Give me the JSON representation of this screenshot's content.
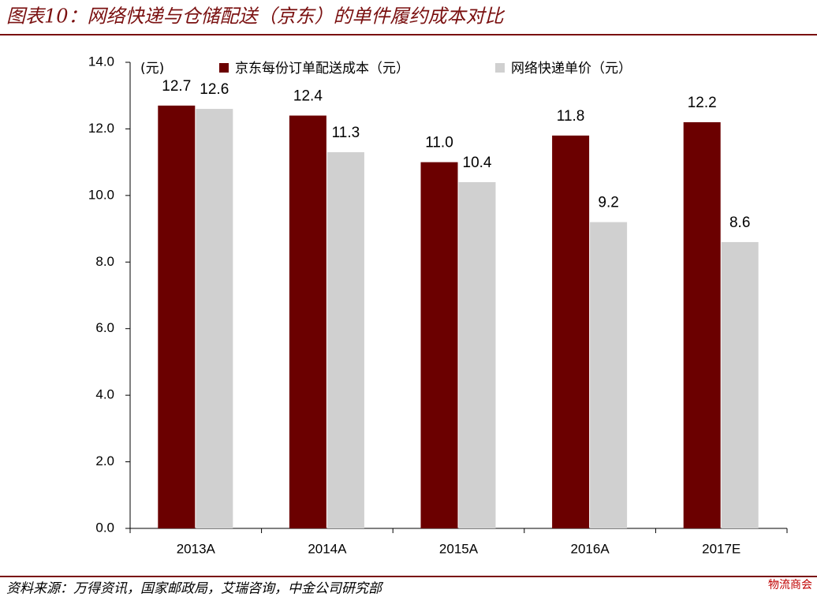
{
  "chart_data": {
    "type": "bar",
    "title": "图表10：网络快递与仓储配送（京东）的单件履约成本对比",
    "source": "资料来源：万得资讯，国家邮政局，艾瑞咨询，中金公司研究部",
    "watermark": "物流商会",
    "y_unit": "(元)",
    "categories": [
      "2013A",
      "2014A",
      "2015A",
      "2016A",
      "2017E"
    ],
    "series": [
      {
        "name": "京东每份订单配送成本（元）",
        "color": "#6b0000",
        "values": [
          12.7,
          12.4,
          11.0,
          11.8,
          12.2
        ],
        "value_labels": [
          "12.7",
          "12.4",
          "11.0",
          "11.8",
          "12.2"
        ]
      },
      {
        "name": "网络快递单价（元）",
        "color": "#d0d0d0",
        "values": [
          12.6,
          11.3,
          10.4,
          9.2,
          8.6
        ],
        "value_labels": [
          "12.6",
          "11.3",
          "10.4",
          "9.2",
          "8.6"
        ]
      }
    ],
    "ylim": [
      0,
      14
    ],
    "yticks": [
      {
        "value": 0,
        "label": "0.0"
      },
      {
        "value": 2,
        "label": "2.0"
      },
      {
        "value": 4,
        "label": "4.0"
      },
      {
        "value": 6,
        "label": "6.0"
      },
      {
        "value": 8,
        "label": "8.0"
      },
      {
        "value": 10,
        "label": "10.0"
      },
      {
        "value": 12,
        "label": "12.0"
      },
      {
        "value": 14,
        "label": "14.0"
      }
    ],
    "legend": "top",
    "grid": false
  }
}
